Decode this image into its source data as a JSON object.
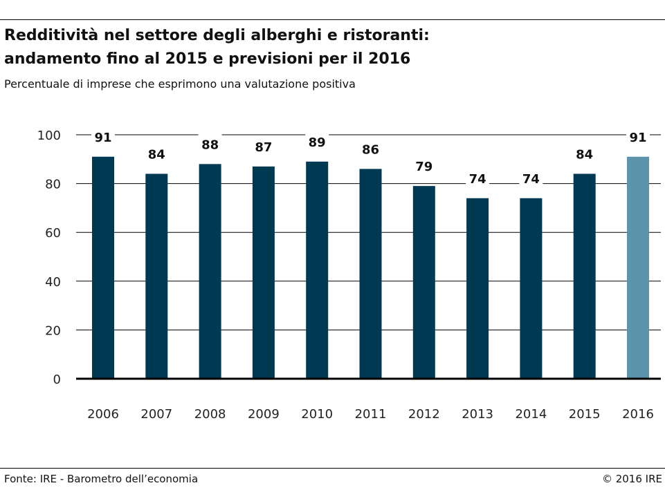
{
  "header": {
    "title_line1": "Redditività nel settore degli alberghi e ristoranti:",
    "title_line2": "andamento fino al 2015 e previsioni per il 2016",
    "subtitle": "Percentuale di imprese che esprimono una valutazione positiva"
  },
  "footer": {
    "source": "Fonte: IRE - Barometro dell’economia",
    "copyright": "© 2016 IRE"
  },
  "colors": {
    "actual": "#003a52",
    "forecast": "#5b94ab",
    "axis": "#000000",
    "grid": "#000000"
  },
  "chart_data": {
    "type": "bar",
    "categories": [
      "2006",
      "2007",
      "2008",
      "2009",
      "2010",
      "2011",
      "2012",
      "2013",
      "2014",
      "2015",
      "2016"
    ],
    "values": [
      91,
      84,
      88,
      87,
      89,
      86,
      79,
      74,
      74,
      84,
      91
    ],
    "forecast_categories": [
      "2016"
    ],
    "yticks": [
      0,
      20,
      40,
      60,
      80,
      100
    ],
    "ylim": [
      0,
      100
    ],
    "title": "Redditività nel settore degli alberghi e ristoranti: andamento fino al 2015 e previsioni per il 2016",
    "subtitle": "Percentuale di imprese che esprimono una valutazione positiva",
    "xlabel": "",
    "ylabel": "",
    "grid": "horizontal",
    "legend": "none"
  }
}
